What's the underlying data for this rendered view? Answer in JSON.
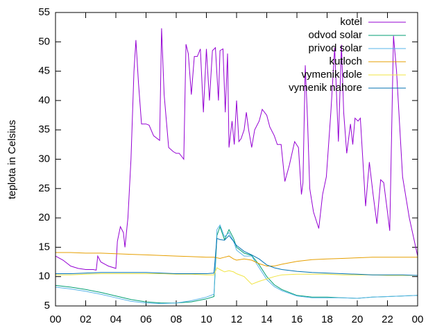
{
  "chart_data": {
    "type": "line",
    "ylabel": "teplota in Celsius",
    "xlim": [
      0,
      24
    ],
    "ylim": [
      5,
      55
    ],
    "xticks": [
      {
        "value": 0,
        "label": "00"
      },
      {
        "value": 2,
        "label": "02"
      },
      {
        "value": 4,
        "label": "04"
      },
      {
        "value": 6,
        "label": "06"
      },
      {
        "value": 8,
        "label": "08"
      },
      10,
      12,
      14,
      16,
      18,
      20,
      22,
      {
        "value": 24,
        "label": "00"
      }
    ],
    "yticks": [
      5,
      10,
      15,
      20,
      25,
      30,
      35,
      40,
      45,
      50,
      55
    ],
    "legend": "top-right",
    "x": [
      0,
      1,
      2,
      3,
      4,
      5,
      6,
      7,
      8,
      9,
      10,
      10.5,
      10.7,
      10.9,
      11.2,
      11.5,
      11.8,
      12,
      12.5,
      13,
      13.5,
      14,
      14.5,
      15,
      16,
      17,
      18,
      19,
      20,
      21,
      22,
      23,
      24
    ],
    "series": [
      {
        "name": "kotel",
        "color": "#9400d3",
        "x": [
          0,
          0.5,
          1,
          1.5,
          2,
          2.5,
          2.7,
          2.8,
          3,
          3.5,
          4,
          4.1,
          4.3,
          4.5,
          4.6,
          4.8,
          5,
          5.2,
          5.33,
          5.5,
          5.7,
          6,
          6.2,
          6.5,
          6.9,
          7.03,
          7.2,
          7.5,
          7.8,
          8,
          8.2,
          8.5,
          8.65,
          8.8,
          9,
          9.2,
          9.4,
          9.6,
          9.8,
          10,
          10.2,
          10.4,
          10.6,
          10.8,
          10.9,
          11.1,
          11.25,
          11.4,
          11.5,
          11.7,
          11.85,
          12,
          12.15,
          12.3,
          12.5,
          12.65,
          12.8,
          13,
          13.2,
          13.5,
          13.7,
          14,
          14.2,
          14.5,
          14.7,
          14.95,
          15.2,
          15.5,
          15.85,
          16.1,
          16.3,
          16.4,
          16.55,
          16.7,
          16.85,
          17.1,
          17.45,
          17.7,
          17.95,
          18.25,
          18.5,
          18.75,
          18.95,
          19.1,
          19.3,
          19.55,
          19.7,
          19.85,
          20.05,
          20.2,
          20.55,
          20.8,
          21.05,
          21.3,
          21.55,
          21.75,
          22,
          22.15,
          22.4,
          22.6,
          23,
          23.45,
          24
        ],
        "values": [
          13.5,
          12.8,
          11.8,
          11.4,
          11.2,
          11.2,
          11.1,
          13.5,
          12.5,
          11.8,
          11.4,
          16,
          18.5,
          17.5,
          15,
          20,
          30,
          45,
          50.3,
          43,
          36,
          36,
          35.8,
          34,
          33.2,
          52.3,
          41,
          32,
          31.3,
          31,
          31,
          30,
          49.6,
          48,
          41,
          47.5,
          47.5,
          48.8,
          38,
          48.8,
          40,
          48.5,
          49,
          40,
          48.5,
          48.8,
          38,
          48,
          32,
          36.5,
          32.5,
          40,
          33,
          33.5,
          35,
          38,
          35,
          32,
          35,
          36.5,
          38.5,
          37.5,
          35.5,
          34,
          32.5,
          32.5,
          26.2,
          29,
          33,
          32,
          24,
          26,
          46,
          37,
          25,
          21,
          18.2,
          24,
          27,
          38,
          49,
          33,
          49.5,
          38,
          31,
          36,
          32.5,
          37,
          36.5,
          37,
          22,
          29.5,
          24,
          19,
          26.5,
          26,
          21,
          17.8,
          51,
          45,
          27,
          20,
          13.5
        ]
      },
      {
        "name": "odvod solar",
        "color": "#009e73",
        "values": [
          8.5,
          8.2,
          7.8,
          7.3,
          6.7,
          6.1,
          5.7,
          5.5,
          5.5,
          5.7,
          6.2,
          6.6,
          17,
          18.5,
          16.3,
          18,
          16.5,
          15,
          14,
          13.6,
          12,
          10,
          8.6,
          7.8,
          6.8,
          6.5,
          6.5,
          6.4,
          6.3,
          6.5,
          6.6,
          6.7,
          6.8
        ]
      },
      {
        "name": "privod solar",
        "color": "#56b4e9",
        "values": [
          8.2,
          7.9,
          7.5,
          7,
          6.4,
          5.8,
          5.5,
          5.4,
          5.5,
          5.9,
          6.5,
          7,
          18,
          18.8,
          16.8,
          17.5,
          16,
          14.5,
          13.5,
          13.5,
          11.5,
          9.5,
          8.3,
          7.6,
          6.7,
          6.4,
          6.4,
          6.4,
          6.3,
          6.5,
          6.6,
          6.7,
          6.8
        ]
      },
      {
        "name": "kutloch",
        "color": "#e69f00",
        "values": [
          14.1,
          14.1,
          14,
          14,
          13.9,
          13.8,
          13.7,
          13.6,
          13.5,
          13.4,
          13.3,
          13.3,
          13.2,
          13.1,
          13.3,
          13.5,
          13,
          12.8,
          13,
          12.8,
          12.2,
          11.8,
          11.8,
          12.1,
          12.6,
          12.9,
          13,
          13.1,
          13.2,
          13.3,
          13.3,
          13.3,
          13.3
        ]
      },
      {
        "name": "vymenik dole",
        "color": "#f0e442",
        "values": [
          10.3,
          10.3,
          10.4,
          10.5,
          10.5,
          10.5,
          10.5,
          10.5,
          10.4,
          10.4,
          10.3,
          10.3,
          11.5,
          11.2,
          10.8,
          11,
          10.8,
          10.5,
          10,
          8.7,
          9.2,
          9.6,
          10,
          10.3,
          10.4,
          10.4,
          10.4,
          10.3,
          10.3,
          10.3,
          10.2,
          10.2,
          10.2
        ]
      },
      {
        "name": "vymenik nahore",
        "color": "#0072b2",
        "values": [
          10.5,
          10.5,
          10.6,
          10.7,
          10.7,
          10.7,
          10.7,
          10.6,
          10.5,
          10.5,
          10.5,
          10.6,
          16.5,
          16.3,
          16.2,
          17,
          16,
          15.3,
          14.3,
          13.7,
          13,
          12,
          11.5,
          11.2,
          10.9,
          10.7,
          10.6,
          10.5,
          10.4,
          10.3,
          10.3,
          10.3,
          10.2
        ]
      }
    ]
  }
}
